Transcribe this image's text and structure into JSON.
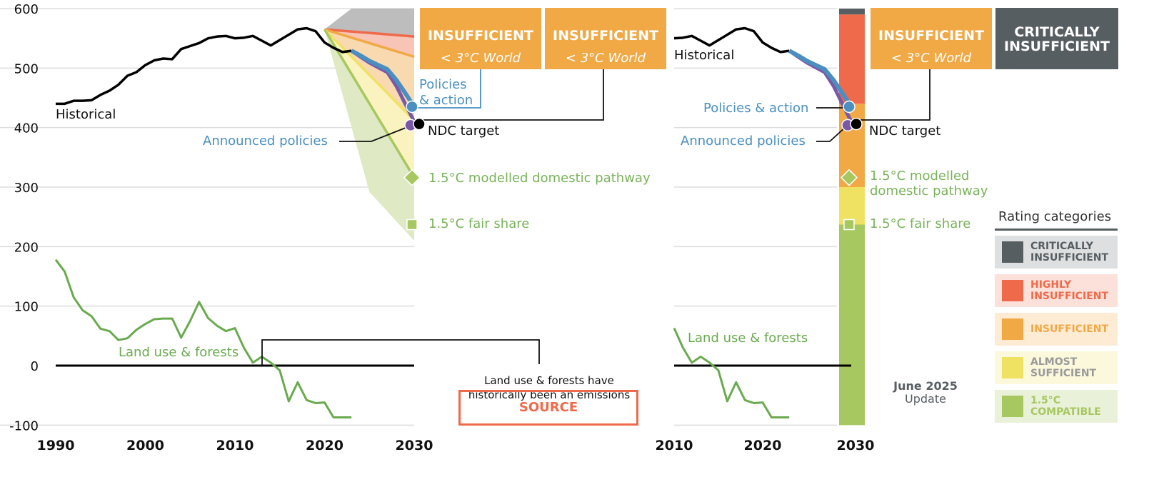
{
  "chart_data": [
    {
      "type": "line",
      "title": "",
      "xlabel": "",
      "ylabel": "",
      "xlim": [
        1990,
        2030
      ],
      "ylim": [
        -100,
        600
      ],
      "x_ticks": [
        "1990",
        "2000",
        "2010",
        "2020",
        "2030"
      ],
      "y_ticks": [
        "600",
        "500",
        "400",
        "300",
        "200",
        "100",
        "0",
        "-100"
      ],
      "grid": true,
      "series": [
        {
          "name": "Historical",
          "color": "#000000",
          "x": [
            1990,
            1991,
            1992,
            1993,
            1994,
            1995,
            1996,
            1997,
            1998,
            1999,
            2000,
            2001,
            2002,
            2003,
            2004,
            2005,
            2006,
            2007,
            2008,
            2009,
            2010,
            2011,
            2012,
            2013,
            2014,
            2015,
            2016,
            2017,
            2018,
            2019,
            2020,
            2021,
            2022,
            2023
          ],
          "y": [
            440,
            440,
            445,
            445,
            446,
            455,
            462,
            472,
            487,
            493,
            505,
            513,
            516,
            515,
            532,
            537,
            542,
            550,
            553,
            554,
            550,
            551,
            554,
            546,
            538,
            547,
            556,
            565,
            567,
            562,
            543,
            534,
            527,
            529
          ]
        },
        {
          "name": "Land use & forests",
          "color": "#6aaa4f",
          "x": [
            1990,
            1991,
            1992,
            1993,
            1994,
            1995,
            1996,
            1997,
            1998,
            1999,
            2000,
            2001,
            2002,
            2003,
            2004,
            2005,
            2006,
            2007,
            2008,
            2009,
            2010,
            2011,
            2012,
            2013,
            2014,
            2015,
            2016,
            2017,
            2018,
            2019,
            2020,
            2021,
            2022,
            2023
          ],
          "y": [
            178,
            158,
            115,
            93,
            83,
            62,
            58,
            43,
            46,
            60,
            70,
            78,
            79,
            79,
            47,
            75,
            107,
            80,
            67,
            58,
            63,
            30,
            5,
            15,
            5,
            -8,
            -60,
            -28,
            -58,
            -63,
            -62,
            -87,
            -87,
            -87
          ]
        },
        {
          "name": "Policies & action",
          "color": "#4a8fc0",
          "x": [
            2023,
            2024,
            2025,
            2026,
            2027,
            2028,
            2029,
            2030
          ],
          "y": [
            529,
            521,
            512,
            505,
            498,
            480,
            458,
            435
          ]
        },
        {
          "name": "Announced policies",
          "color": "#7b58a6",
          "x": [
            2023,
            2024,
            2025,
            2026,
            2027,
            2028,
            2029,
            2030
          ],
          "y": [
            529,
            519,
            509,
            501,
            493,
            470,
            440,
            410
          ]
        }
      ],
      "points": [
        {
          "name": "Policies & action",
          "x": 2030,
          "y": 435
        },
        {
          "name": "Announced policies",
          "x": 2030,
          "y": 410
        },
        {
          "name": "NDC target",
          "x": 2030,
          "y": 412
        },
        {
          "name": "1.5°C modelled domestic pathway",
          "x": 2030,
          "y": 316
        },
        {
          "name": "1.5°C fair share",
          "x": 2030,
          "y": 237
        }
      ],
      "rating_bands_2030": {
        "start": {
          "x": 2020,
          "y": 565
        },
        "critically_insufficient_top": 600,
        "highly_insufficient": 553,
        "insufficient": 519,
        "almost_sufficient": 412,
        "compatible_1_5": 316,
        "green_range_bottom": 210,
        "green_range_mid": {
          "x": 2025,
          "y": 292
        }
      }
    },
    {
      "type": "line",
      "xlim": [
        2010,
        2030
      ],
      "ylim": [
        -100,
        600
      ],
      "x_ticks": [
        "2010",
        "2020",
        "2030"
      ],
      "rating_bar": [
        {
          "category": "CRITICALLY INSUFFICIENT",
          "from": 590,
          "to": 600
        },
        {
          "category": "HIGHLY INSUFFICIENT",
          "from": 440,
          "to": 590
        },
        {
          "category": "INSUFFICIENT",
          "from": 300,
          "to": 440
        },
        {
          "category": "ALMOST SUFFICIENT",
          "from": 237,
          "to": 300
        },
        {
          "category": "1.5°C COMPATIBLE",
          "from": -100,
          "to": 237
        }
      ]
    }
  ],
  "labels": {
    "historical": "Historical",
    "policies_action_1": "Policies",
    "policies_action_2": "& action",
    "policies_action": "Policies & action",
    "announced": "Announced policies",
    "ndc": "NDC target",
    "modelled": "1.5°C modelled domestic pathway",
    "modelled_1": "1.5°C modelled",
    "modelled_2": "domestic pathway",
    "fair_share": "1.5°C fair share",
    "land_use": "Land use & forests",
    "land_note_1": "Land use & forests have",
    "land_note_2": "historically been an emissions",
    "source": "SOURCE"
  },
  "rating_boxes": [
    {
      "title": "INSUFFICIENT",
      "sub": "< 3°C World"
    },
    {
      "title": "INSUFFICIENT",
      "sub": "< 3°C World"
    },
    {
      "title": "INSUFFICIENT",
      "sub": "< 3°C World"
    },
    {
      "title": "CRITICALLY INSUFFICIENT"
    }
  ],
  "legend": {
    "title": "Rating categories",
    "items": [
      {
        "label": "CRITICALLY INSUFFICIENT",
        "color": "#575e62",
        "bg": "#dedfe0"
      },
      {
        "label": "HIGHLY INSUFFICIENT",
        "color": "#ef6a4a",
        "bg": "#fbe1da"
      },
      {
        "label": "INSUFFICIENT",
        "color": "#f1a945",
        "bg": "#fdebd3"
      },
      {
        "label": "ALMOST SUFFICIENT",
        "color": "#efe262",
        "bg": "#fbf8dc"
      },
      {
        "label": "1.5°C COMPATIBLE",
        "color": "#a7c760",
        "bg": "#e9f1d9"
      }
    ]
  },
  "update": {
    "date": "June 2025",
    "text": "Update"
  }
}
